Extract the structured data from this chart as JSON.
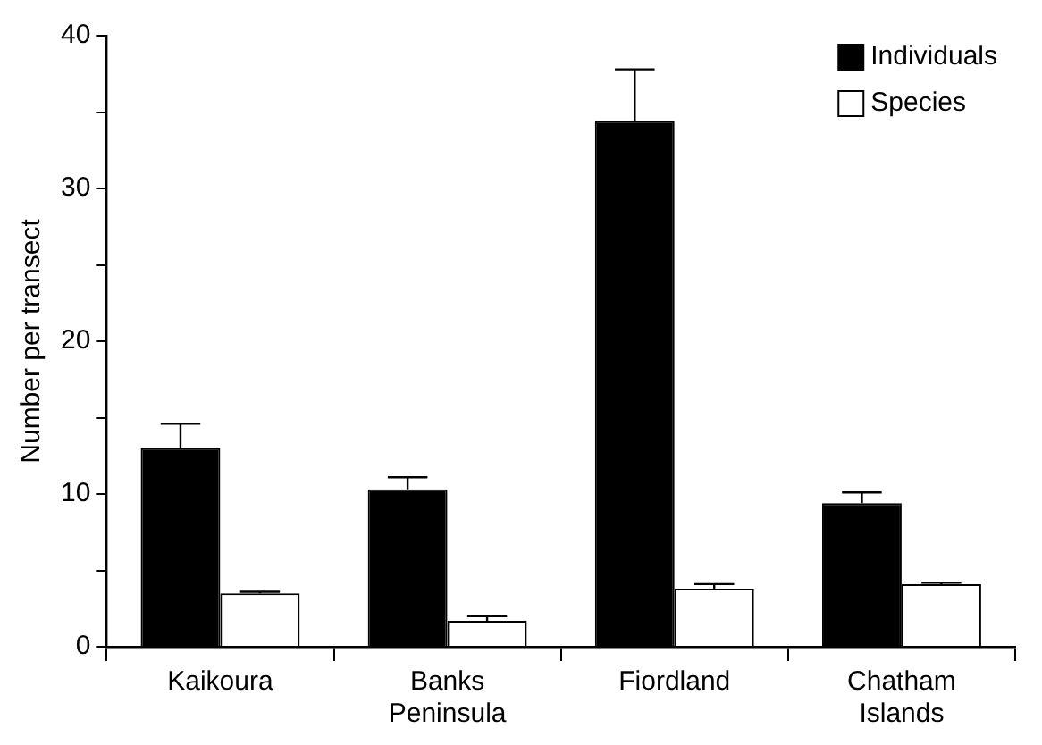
{
  "chart_data": {
    "type": "bar",
    "ylabel": "Number per transect",
    "categories": [
      "Kaikoura",
      "Banks\nPeninsula",
      "Fiordland",
      "Chatham\nIslands"
    ],
    "series": [
      {
        "name": "Individuals",
        "color": "#000000",
        "values": [
          13.0,
          10.3,
          34.4,
          9.4
        ],
        "errors": [
          [
            13.0,
            14.6
          ],
          [
            10.3,
            11.1
          ],
          [
            34.4,
            37.8
          ],
          [
            9.4,
            10.1
          ]
        ]
      },
      {
        "name": "Species",
        "color": "#ffffff",
        "values": [
          3.5,
          1.7,
          3.8,
          4.1
        ],
        "errors": [
          [
            3.5,
            3.6
          ],
          [
            1.7,
            2.0
          ],
          [
            3.8,
            4.1
          ],
          [
            4.1,
            4.2
          ]
        ]
      }
    ],
    "ylim": [
      0,
      40
    ],
    "yticks": [
      0,
      {
        "value": 5,
        "label": null
      },
      10,
      {
        "value": 15,
        "label": null
      },
      20,
      {
        "value": 25,
        "label": null
      },
      30,
      {
        "value": 35,
        "label": null
      },
      40
    ],
    "grid": false,
    "legend": "top right"
  }
}
